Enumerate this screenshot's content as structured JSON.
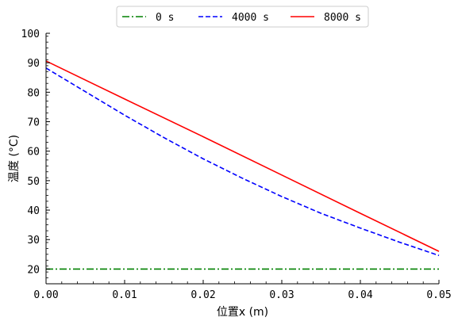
{
  "chart_data": {
    "type": "line",
    "xlabel": "位置x (m)",
    "ylabel": "温度 (°C)",
    "xlim": [
      0.0,
      0.05
    ],
    "ylim": [
      15,
      100
    ],
    "xticks": [
      0.0,
      0.01,
      0.02,
      0.03,
      0.04,
      0.05
    ],
    "xtick_labels": [
      "0.00",
      "0.01",
      "0.02",
      "0.03",
      "0.04",
      "0.05"
    ],
    "yticks": [
      20,
      30,
      40,
      50,
      60,
      70,
      80,
      90,
      100
    ],
    "ytick_labels": [
      "20",
      "30",
      "40",
      "50",
      "60",
      "70",
      "80",
      "90",
      "100"
    ],
    "grid": false,
    "legend_position": "top-center",
    "series": [
      {
        "name": "0 s",
        "color": "#008000",
        "dash": "dashdot",
        "x": [
          0.0,
          0.01,
          0.02,
          0.03,
          0.04,
          0.05
        ],
        "y": [
          20,
          20,
          20,
          20,
          20,
          20
        ]
      },
      {
        "name": "4000 s",
        "color": "#0000ff",
        "dash": "dashed",
        "x": [
          0.0,
          0.005,
          0.01,
          0.015,
          0.02,
          0.025,
          0.03,
          0.035,
          0.04,
          0.045,
          0.05
        ],
        "y": [
          88.2,
          80.2,
          72.2,
          64.6,
          57.4,
          50.8,
          44.6,
          38.9,
          33.9,
          29.1,
          24.6
        ]
      },
      {
        "name": "8000 s",
        "color": "#ff0000",
        "dash": "solid",
        "x": [
          0.0,
          0.01,
          0.02,
          0.03,
          0.04,
          0.05
        ],
        "y": [
          90.6,
          77.7,
          64.9,
          51.9,
          38.9,
          26.0
        ]
      }
    ]
  }
}
